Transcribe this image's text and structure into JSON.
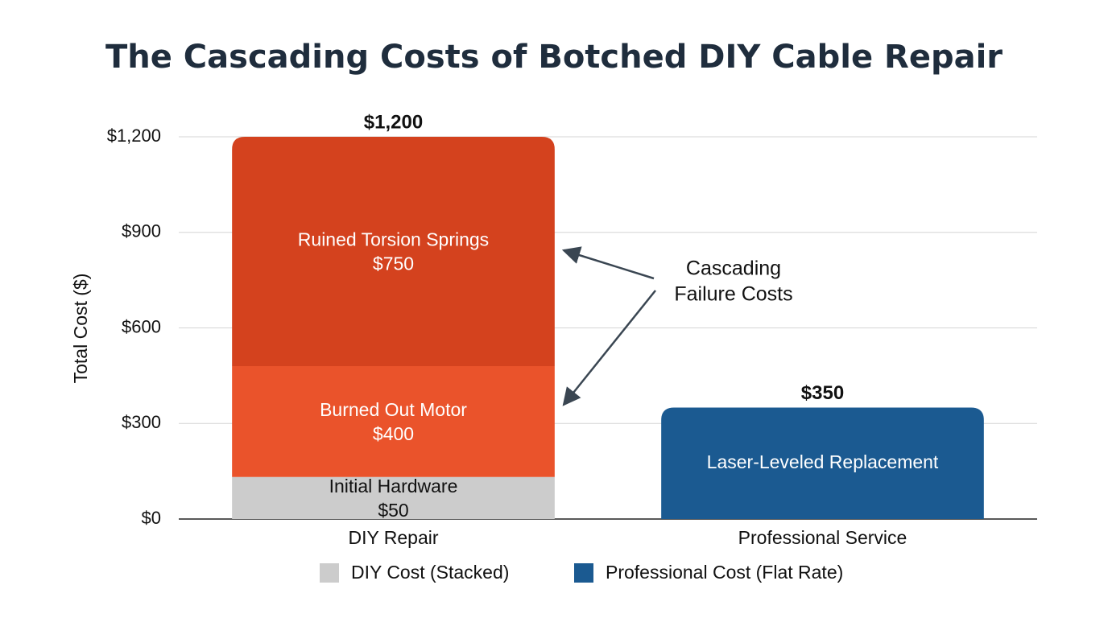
{
  "chart_data": {
    "type": "bar",
    "stacked": true,
    "title": "The Cascading Costs of Botched DIY Cable Repair",
    "ylabel": "Total Cost ($)",
    "xlabel": "",
    "ylim": [
      0,
      1200
    ],
    "yticks": [
      0,
      300,
      600,
      900,
      1200
    ],
    "ytick_labels": [
      "$0",
      "$300",
      "$600",
      "$900",
      "$1,200"
    ],
    "grid": true,
    "categories": [
      "DIY Repair",
      "Professional Service"
    ],
    "bars": [
      {
        "category": "DIY Repair",
        "total": 1200,
        "total_label": "$1,200",
        "segments": [
          {
            "label": "Initial Hardware",
            "value_label": "$50",
            "value": 50,
            "color": "#cccccc",
            "text_color": "#111111"
          },
          {
            "label": "Burned Out Motor",
            "value_label": "$400",
            "value": 400,
            "color": "#ea532b",
            "text_color": "#ffffff"
          },
          {
            "label": "Ruined Torsion Springs",
            "value_label": "$750",
            "value": 750,
            "color": "#d4421e",
            "text_color": "#ffffff"
          }
        ]
      },
      {
        "category": "Professional Service",
        "total": 350,
        "total_label": "$350",
        "segments": [
          {
            "label": "Laser-Leveled Replacement",
            "value_label": "",
            "value": 350,
            "color": "#1b5a91",
            "text_color": "#ffffff"
          }
        ]
      }
    ],
    "annotation": {
      "lines": [
        "Cascading",
        "Failure Costs"
      ],
      "color": "#3a4652"
    },
    "legend": {
      "position": "bottom",
      "items": [
        {
          "label": "DIY Cost (Stacked)",
          "color": "#cccccc"
        },
        {
          "label": "Professional Cost (Flat Rate)",
          "color": "#1b5a91"
        }
      ]
    }
  }
}
